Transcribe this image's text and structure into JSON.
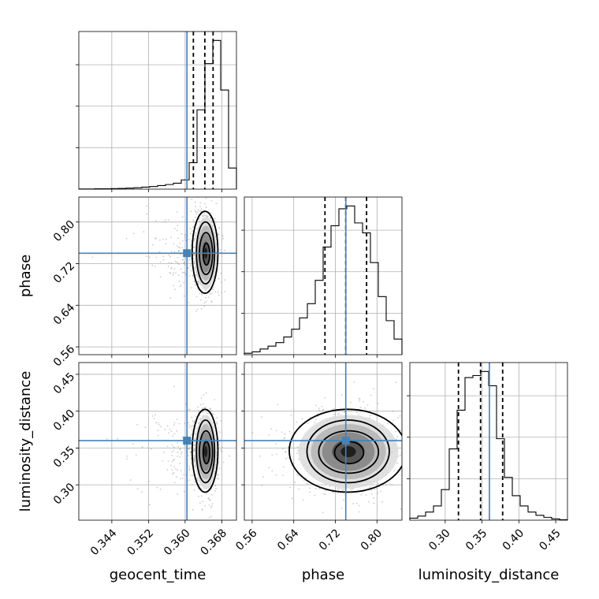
{
  "chart_data": {
    "type": "corner",
    "parameters": [
      {
        "name": "geocent_time",
        "label": "geocent_time",
        "lim": [
          0.3368,
          0.3712
        ],
        "ticks": [
          0.344,
          0.352,
          0.36,
          0.368
        ],
        "tick_labels": [
          "0.344",
          "0.352",
          "0.360",
          "0.368"
        ],
        "truth": 0.3604,
        "quantiles": [
          0.3618,
          0.3643,
          0.3661
        ]
      },
      {
        "name": "phase",
        "label": "phase",
        "lim": [
          0.545,
          0.848
        ],
        "ticks": [
          0.56,
          0.64,
          0.72,
          0.8
        ],
        "tick_labels": [
          "0.56",
          "0.64",
          "0.72",
          "0.80"
        ],
        "truth": 0.74,
        "quantiles": [
          0.7,
          0.74,
          0.78
        ]
      },
      {
        "name": "luminosity_distance",
        "label": "luminosity_distance",
        "lim": [
          0.252,
          0.466
        ],
        "ticks": [
          0.3,
          0.35,
          0.4,
          0.45
        ],
        "tick_labels": [
          "0.30",
          "0.35",
          "0.40",
          "0.45"
        ],
        "truth": 0.36,
        "quantiles": [
          0.318,
          0.348,
          0.378
        ]
      }
    ],
    "histograms": [
      {
        "param": "geocent_time",
        "bin_edges_range": [
          0.3368,
          0.3712
        ],
        "bins": 20,
        "counts": [
          0.2,
          0.3,
          0.5,
          0.6,
          0.9,
          1.1,
          1.6,
          2.2,
          3,
          4,
          5.5,
          7,
          9,
          14,
          40,
          120,
          190,
          225,
          150,
          32
        ]
      },
      {
        "param": "phase",
        "bin_edges_range": [
          0.545,
          0.848
        ],
        "bins": 20,
        "counts": [
          2,
          4,
          8,
          12,
          17,
          25,
          36,
          52,
          72,
          105,
          152,
          182,
          206,
          210,
          186,
          172,
          130,
          82,
          48,
          22
        ]
      },
      {
        "param": "luminosity_distance",
        "bin_edges_range": [
          0.252,
          0.466
        ],
        "bins": 20,
        "counts": [
          5,
          10,
          20,
          35,
          75,
          175,
          270,
          350,
          355,
          365,
          330,
          200,
          105,
          60,
          35,
          20,
          12,
          7,
          3,
          1
        ]
      }
    ],
    "joint": [
      {
        "x": "geocent_time",
        "y": "phase",
        "center": [
          0.3645,
          0.74
        ],
        "spread": [
          0.0012,
          0.035
        ]
      },
      {
        "x": "geocent_time",
        "y": "luminosity_distance",
        "center": [
          0.3645,
          0.345
        ],
        "spread": [
          0.0012,
          0.025
        ]
      },
      {
        "x": "phase",
        "y": "luminosity_distance",
        "center": [
          0.745,
          0.345
        ],
        "spread": [
          0.048,
          0.025
        ]
      }
    ],
    "truth_color": "#4682b4",
    "grid": true
  }
}
